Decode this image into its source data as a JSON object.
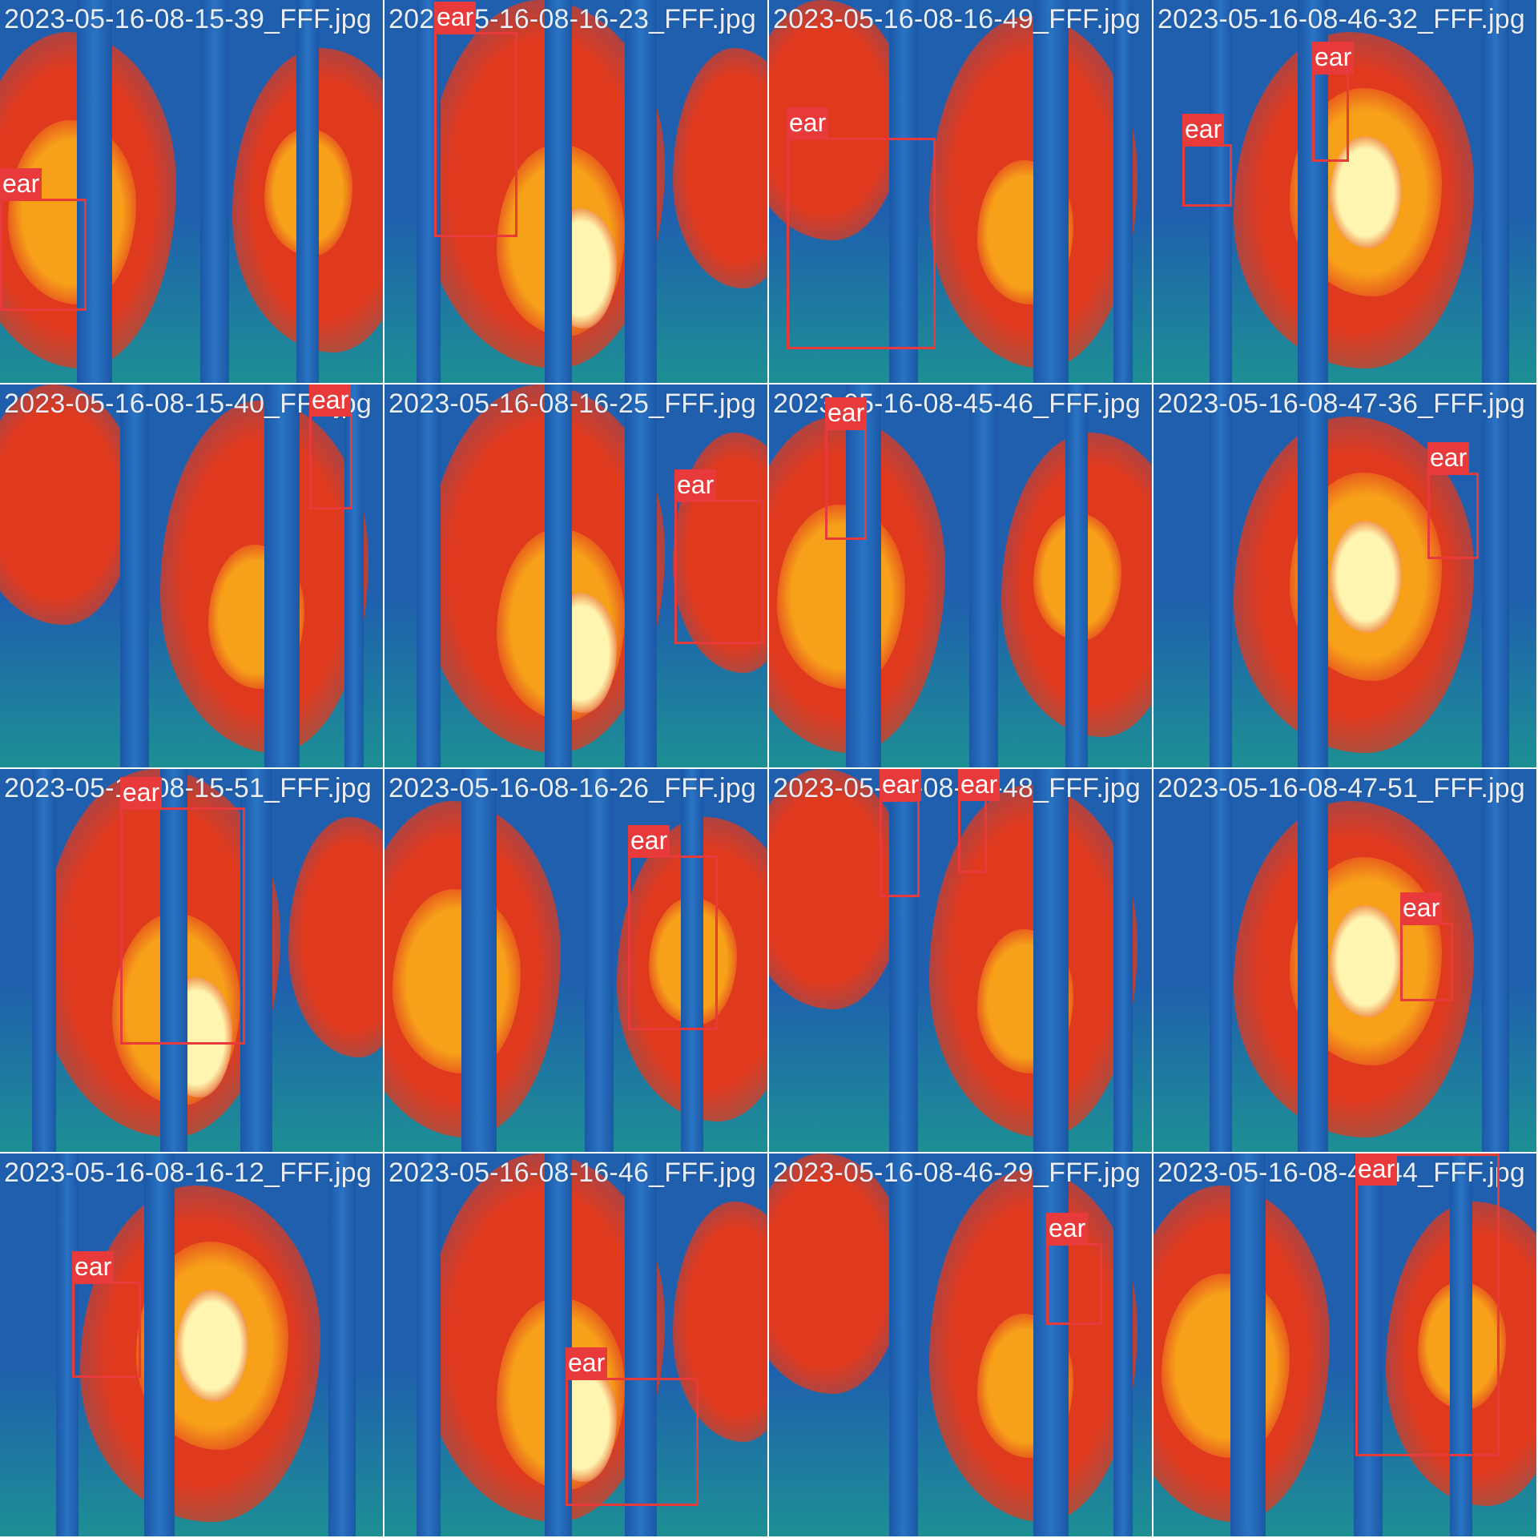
{
  "palette": {
    "cold": "#1f5fae",
    "cool": "#1d8f94",
    "warm": "#e03a1e",
    "hot": "#f7a11a",
    "hottest": "#fff5b0",
    "box": "#e83a3a"
  },
  "class_label": "ear",
  "tiles": [
    {
      "filename": "2023-05-16-08-15-39_FFF.jpg",
      "scene": "a",
      "detections": [
        {
          "label": "ear"
        }
      ]
    },
    {
      "filename": "2023-05-16-08-16-23_FFF.jpg",
      "scene": "b",
      "detections": [
        {
          "label": "ear"
        }
      ]
    },
    {
      "filename": "2023-05-16-08-16-49_FFF.jpg",
      "scene": "c",
      "detections": [
        {
          "label": "ear"
        }
      ]
    },
    {
      "filename": "2023-05-16-08-46-32_FFF.jpg",
      "scene": "d",
      "detections": [
        {
          "label": "ear"
        },
        {
          "label": "ear"
        }
      ]
    },
    {
      "filename": "2023-05-16-08-15-40_FFF.jpg",
      "scene": "c",
      "detections": [
        {
          "label": "ear"
        }
      ]
    },
    {
      "filename": "2023-05-16-08-16-25_FFF.jpg",
      "scene": "b",
      "detections": [
        {
          "label": "ear"
        }
      ]
    },
    {
      "filename": "2023-05-16-08-45-46_FFF.jpg",
      "scene": "a",
      "detections": [
        {
          "label": "ear"
        }
      ]
    },
    {
      "filename": "2023-05-16-08-47-36_FFF.jpg",
      "scene": "d",
      "detections": [
        {
          "label": "ear"
        }
      ]
    },
    {
      "filename": "2023-05-16-08-15-51_FFF.jpg",
      "scene": "b",
      "detections": [
        {
          "label": "ear"
        }
      ]
    },
    {
      "filename": "2023-05-16-08-16-26_FFF.jpg",
      "scene": "a",
      "detections": [
        {
          "label": "ear"
        }
      ]
    },
    {
      "filename": "2023-05-16-08-45-48_FFF.jpg",
      "scene": "c",
      "detections": [
        {
          "label": "ear"
        },
        {
          "label": "ear"
        }
      ]
    },
    {
      "filename": "2023-05-16-08-47-51_FFF.jpg",
      "scene": "d",
      "detections": [
        {
          "label": "ear"
        }
      ]
    },
    {
      "filename": "2023-05-16-08-16-12_FFF.jpg",
      "scene": "d",
      "detections": [
        {
          "label": "ear"
        }
      ]
    },
    {
      "filename": "2023-05-16-08-16-46_FFF.jpg",
      "scene": "b",
      "detections": [
        {
          "label": "ear"
        }
      ]
    },
    {
      "filename": "2023-05-16-08-46-29_FFF.jpg",
      "scene": "c",
      "detections": [
        {
          "label": "ear"
        }
      ]
    },
    {
      "filename": "2023-05-16-08-48-44_FFF.jpg",
      "scene": "a",
      "detections": [
        {
          "label": "ear"
        }
      ]
    }
  ]
}
